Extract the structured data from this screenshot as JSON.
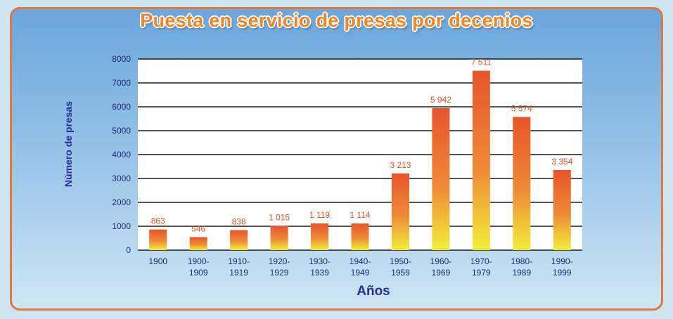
{
  "chart_data": {
    "type": "bar",
    "title": "Puesta en servicio de presas por decenios",
    "xlabel": "Años",
    "ylabel": "Número de presas",
    "ylim": [
      0,
      8000
    ],
    "yticks": [
      0,
      1000,
      2000,
      3000,
      4000,
      5000,
      6000,
      7000,
      8000
    ],
    "grid": true,
    "categories": [
      [
        "1900"
      ],
      [
        "1900-",
        "1909"
      ],
      [
        "1910-",
        "1919"
      ],
      [
        "1920-",
        "1929"
      ],
      [
        "1930-",
        "1939"
      ],
      [
        "1940-",
        "1949"
      ],
      [
        "1950-",
        "1959"
      ],
      [
        "1960-",
        "1969"
      ],
      [
        "1970-",
        "1979"
      ],
      [
        "1980-",
        "1989"
      ],
      [
        "1990-",
        "1999"
      ]
    ],
    "values": [
      863,
      546,
      838,
      1015,
      1119,
      1114,
      3213,
      5942,
      7511,
      5574,
      3354
    ],
    "value_labels": [
      "863",
      "546",
      "838",
      "1 015",
      "1 119",
      "1 114",
      "3 213",
      "5 942",
      "7 511",
      "5 574",
      "3 354"
    ],
    "colors": {
      "bar_top": "#e8542a",
      "bar_bottom": "#f0ef3a",
      "label": "#e8501e",
      "axis_text": "#1e2a78",
      "title": "#f5841f",
      "border": "#e2783a"
    }
  }
}
